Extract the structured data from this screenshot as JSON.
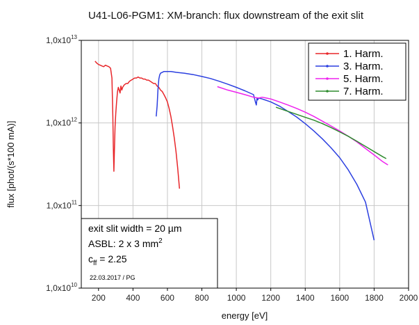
{
  "chart_data": {
    "type": "line",
    "title": "U41-L06-PGM1: XM-branch: flux downstream of the exit slit",
    "xlabel": "energy [eV]",
    "ylabel": "flux [phot/(s*100 mA)]",
    "xlim": [
      100,
      2000
    ],
    "ylim": [
      10000000000.0,
      10000000000000.0
    ],
    "yscale": "log",
    "grid": true,
    "legend_position": "top-right",
    "x_ticks": [
      "200",
      "400",
      "600",
      "800",
      "1000",
      "1200",
      "1400",
      "1600",
      "1800",
      "2000"
    ],
    "y_ticks": [
      {
        "mant": "1,0x10",
        "exp": "10",
        "value": 10000000000.0
      },
      {
        "mant": "1,0x10",
        "exp": "11",
        "value": 100000000000.0
      },
      {
        "mant": "1,0x10",
        "exp": "12",
        "value": 1000000000000.0
      },
      {
        "mant": "1,0x10",
        "exp": "13",
        "value": 10000000000000.0
      }
    ],
    "series": [
      {
        "name": "1. Harm.",
        "color": "#e8262a",
        "x": [
          180,
          190,
          200,
          210,
          220,
          230,
          240,
          250,
          260,
          270,
          278,
          283,
          286,
          289,
          292,
          296,
          300,
          305,
          310,
          315,
          320,
          325,
          330,
          335,
          340,
          345,
          350,
          360,
          370,
          380,
          390,
          400,
          410,
          420,
          430,
          440,
          450,
          460,
          470,
          480,
          490,
          500,
          510,
          520,
          530,
          540,
          550,
          560,
          570,
          580,
          590,
          600,
          610,
          620,
          630,
          640,
          650,
          660,
          670
        ],
        "y": [
          5600000000000.0,
          5300000000000.0,
          5100000000000.0,
          5000000000000.0,
          4900000000000.0,
          4800000000000.0,
          5000000000000.0,
          4900000000000.0,
          4800000000000.0,
          4600000000000.0,
          3500000000000.0,
          1200000000000.0,
          500000000000.0,
          260000000000.0,
          450000000000.0,
          900000000000.0,
          1300000000000.0,
          1800000000000.0,
          2400000000000.0,
          2700000000000.0,
          2500000000000.0,
          2300000000000.0,
          2800000000000.0,
          2500000000000.0,
          2700000000000.0,
          2800000000000.0,
          2900000000000.0,
          3000000000000.0,
          3000000000000.0,
          3200000000000.0,
          3300000000000.0,
          3400000000000.0,
          3500000000000.0,
          3500000000000.0,
          3600000000000.0,
          3500000000000.0,
          3500000000000.0,
          3400000000000.0,
          3400000000000.0,
          3300000000000.0,
          3300000000000.0,
          3200000000000.0,
          3100000000000.0,
          3000000000000.0,
          3000000000000.0,
          2800000000000.0,
          2700000000000.0,
          2500000000000.0,
          2400000000000.0,
          2200000000000.0,
          2000000000000.0,
          1800000000000.0,
          1500000000000.0,
          1200000000000.0,
          900000000000.0,
          650000000000.0,
          450000000000.0,
          280000000000.0,
          160000000000.0
        ]
      },
      {
        "name": "3. Harm.",
        "color": "#2b3fe0",
        "x": [
          535,
          540,
          545,
          550,
          555,
          560,
          570,
          580,
          590,
          600,
          620,
          650,
          700,
          750,
          800,
          850,
          900,
          950,
          1000,
          1050,
          1100,
          1112,
          1116,
          1120,
          1124,
          1130,
          1150,
          1200,
          1250,
          1300,
          1350,
          1400,
          1450,
          1500,
          1550,
          1600,
          1650,
          1700,
          1750,
          1800
        ],
        "y": [
          1200000000000.0,
          1600000000000.0,
          2500000000000.0,
          3400000000000.0,
          3800000000000.0,
          4000000000000.0,
          4100000000000.0,
          4200000000000.0,
          4200000000000.0,
          4200000000000.0,
          4200000000000.0,
          4100000000000.0,
          4000000000000.0,
          3850000000000.0,
          3650000000000.0,
          3450000000000.0,
          3200000000000.0,
          2950000000000.0,
          2700000000000.0,
          2450000000000.0,
          2200000000000.0,
          1750000000000.0,
          1650000000000.0,
          2000000000000.0,
          1900000000000.0,
          2000000000000.0,
          1950000000000.0,
          1800000000000.0,
          1600000000000.0,
          1380000000000.0,
          1180000000000.0,
          980000000000.0,
          800000000000.0,
          640000000000.0,
          500000000000.0,
          380000000000.0,
          270000000000.0,
          180000000000.0,
          110000000000.0,
          38000000000.0
        ]
      },
      {
        "name": "5. Harm.",
        "color": "#ee22ee",
        "x": [
          890,
          950,
          1000,
          1050,
          1100,
          1130,
          1150,
          1200,
          1250,
          1300,
          1350,
          1400,
          1450,
          1500,
          1550,
          1600,
          1650,
          1700,
          1750,
          1800,
          1850,
          1880
        ],
        "y": [
          2750000000000.0,
          2500000000000.0,
          2350000000000.0,
          2200000000000.0,
          2050000000000.0,
          2000000000000.0,
          2050000000000.0,
          1950000000000.0,
          1800000000000.0,
          1650000000000.0,
          1500000000000.0,
          1350000000000.0,
          1200000000000.0,
          1050000000000.0,
          920000000000.0,
          800000000000.0,
          690000000000.0,
          590000000000.0,
          490000000000.0,
          410000000000.0,
          340000000000.0,
          310000000000.0
        ]
      },
      {
        "name": "7. Harm.",
        "color": "#2e8b2e",
        "x": [
          1230,
          1300,
          1350,
          1400,
          1450,
          1500,
          1550,
          1600,
          1650,
          1700,
          1750,
          1800,
          1850,
          1870
        ],
        "y": [
          1550000000000.0,
          1380000000000.0,
          1270000000000.0,
          1170000000000.0,
          1080000000000.0,
          980000000000.0,
          880000000000.0,
          780000000000.0,
          690000000000.0,
          600000000000.0,
          520000000000.0,
          450000000000.0,
          390000000000.0,
          370000000000.0
        ]
      }
    ],
    "annotation": {
      "line1": "exit slit width = 20 µm",
      "line2_main": "ASBL: 2 x 3 mm",
      "line2_sup": "2",
      "line3_main": "c",
      "line3_sub": "ff",
      "line3_rest": " = 2.25",
      "date": "22.03.2017 / PG"
    }
  }
}
